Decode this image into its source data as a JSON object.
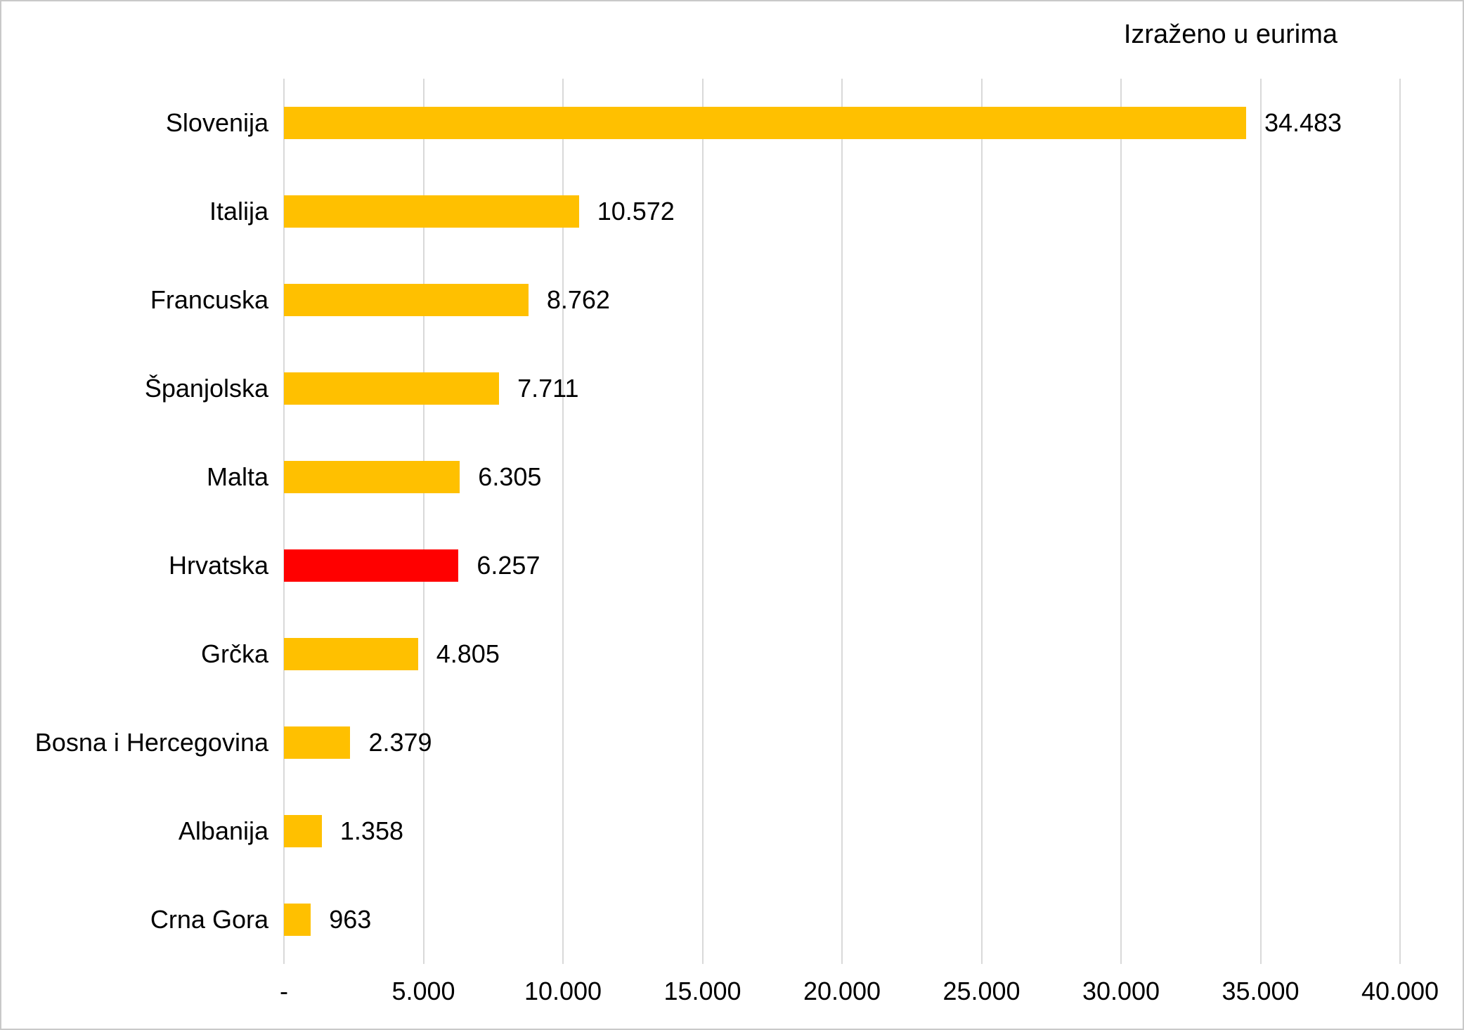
{
  "title": "Izraženo u eurima",
  "chart_data": {
    "type": "bar",
    "orientation": "horizontal",
    "title": "Izraženo u eurima",
    "categories": [
      "Slovenija",
      "Italija",
      "Francuska",
      "Španjolska",
      "Malta",
      "Hrvatska",
      "Grčka",
      "Bosna i Hercegovina",
      "Albanija",
      "Crna Gora"
    ],
    "values": [
      34483,
      10572,
      8762,
      7711,
      6305,
      6257,
      4805,
      2379,
      1358,
      963
    ],
    "value_labels": [
      "34.483",
      "10.572",
      "8.762",
      "7.711",
      "6.305",
      "6.257",
      "4.805",
      "2.379",
      "1.358",
      "963"
    ],
    "bar_colors": [
      "#FFC000",
      "#FFC000",
      "#FFC000",
      "#FFC000",
      "#FFC000",
      "#FF0000",
      "#FFC000",
      "#FFC000",
      "#FFC000",
      "#FFC000"
    ],
    "highlight_category": "Hrvatska",
    "xlabel": "",
    "ylabel": "",
    "x_axis": {
      "min": 0,
      "max": 40000,
      "step": 5000,
      "ticks": [
        "-",
        "5.000",
        "10.000",
        "15.000",
        "20.000",
        "25.000",
        "30.000",
        "35.000",
        "40.000"
      ]
    },
    "grid": true,
    "legend": false,
    "colors": {
      "default_bar": "#FFC000",
      "highlight_bar": "#FF0000",
      "gridline": "#D9D9D9",
      "text": "#000000",
      "frame_border": "#C9C9C9"
    }
  }
}
